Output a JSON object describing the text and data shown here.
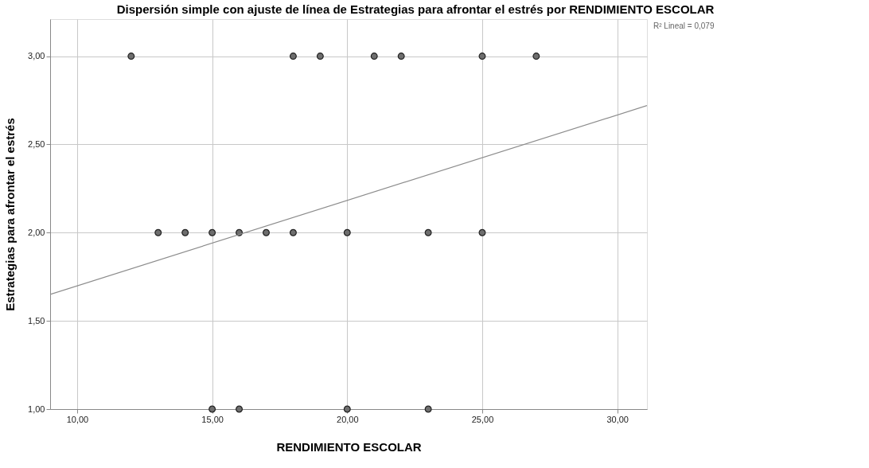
{
  "chart_data": {
    "type": "scatter",
    "title": "Dispersión simple con ajuste de línea de Estrategias para afrontar el estrés por RENDIMIENTO ESCOLAR",
    "xlabel": "RENDIMIENTO ESCOLAR",
    "ylabel": "Estrategias para afrontar el estrés",
    "annotations": [
      "R² Lineal = 0,079"
    ],
    "series": [
      {
        "color": "#6e6e6e",
        "marker": "circle",
        "x": [
          12,
          18,
          19,
          21,
          22,
          25,
          27,
          13,
          14,
          15,
          16,
          17,
          18,
          20,
          23,
          25,
          15,
          16,
          20,
          23
        ],
        "values": [
          3,
          3,
          3,
          3,
          3,
          3,
          3,
          2,
          2,
          2,
          2,
          2,
          2,
          2,
          2,
          2,
          1,
          1,
          1,
          1
        ]
      },
      {
        "type": "line",
        "color": "#8c8c8c",
        "line_style": "solid",
        "marker": "none",
        "x": [
          9,
          31.1
        ],
        "values": [
          1.65,
          2.72
        ]
      }
    ],
    "xlim": [
      9,
      31.1
    ],
    "ylim": [
      1,
      3.21
    ],
    "xticks": [
      {
        "value": 10,
        "label": "10,00"
      },
      {
        "value": 15,
        "label": "15,00"
      },
      {
        "value": 20,
        "label": "20,00"
      },
      {
        "value": 25,
        "label": "25,00"
      },
      {
        "value": 30,
        "label": "30,00"
      }
    ],
    "yticks": [
      {
        "value": 1,
        "label": "1,00"
      },
      {
        "value": 1.5,
        "label": "1,50"
      },
      {
        "value": 2,
        "label": "2,00"
      },
      {
        "value": 2.5,
        "label": "2,50"
      },
      {
        "value": 3,
        "label": "3,00"
      }
    ],
    "grid": true
  }
}
